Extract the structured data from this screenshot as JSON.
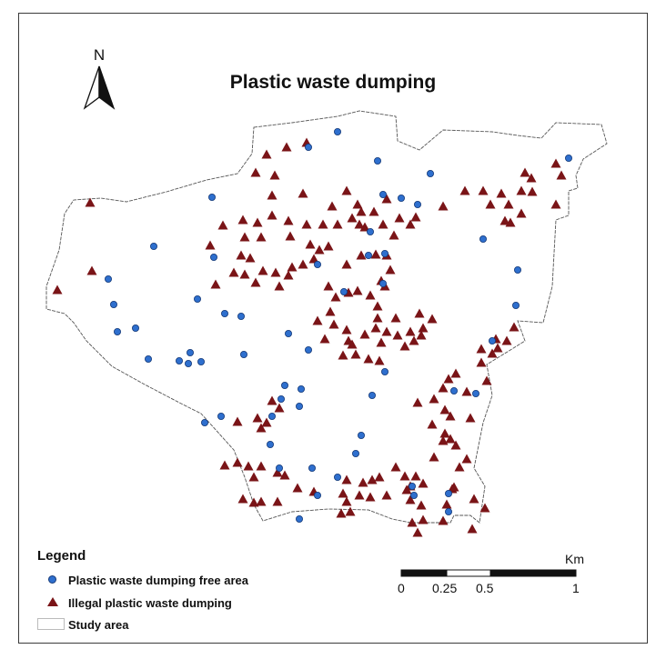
{
  "title": "Plastic waste dumping",
  "north_arrow": {
    "letter": "N"
  },
  "legend": {
    "title": "Legend",
    "items": [
      {
        "label": "Plastic waste dumping free area",
        "symbol": "blue-circle",
        "color": "#2e6fce"
      },
      {
        "label": "Illegal plastic waste dumping",
        "symbol": "dark-red-triangle",
        "color": "#7a1417"
      },
      {
        "label": "Study area",
        "symbol": "outline-box"
      }
    ]
  },
  "scale_bar": {
    "unit": "Km",
    "ticks": [
      "0",
      "0.25",
      "0.5",
      "1"
    ]
  },
  "colors": {
    "free_area": "#2e6fce",
    "illegal_dumping": "#7a1417",
    "boundary": "#555555"
  }
}
